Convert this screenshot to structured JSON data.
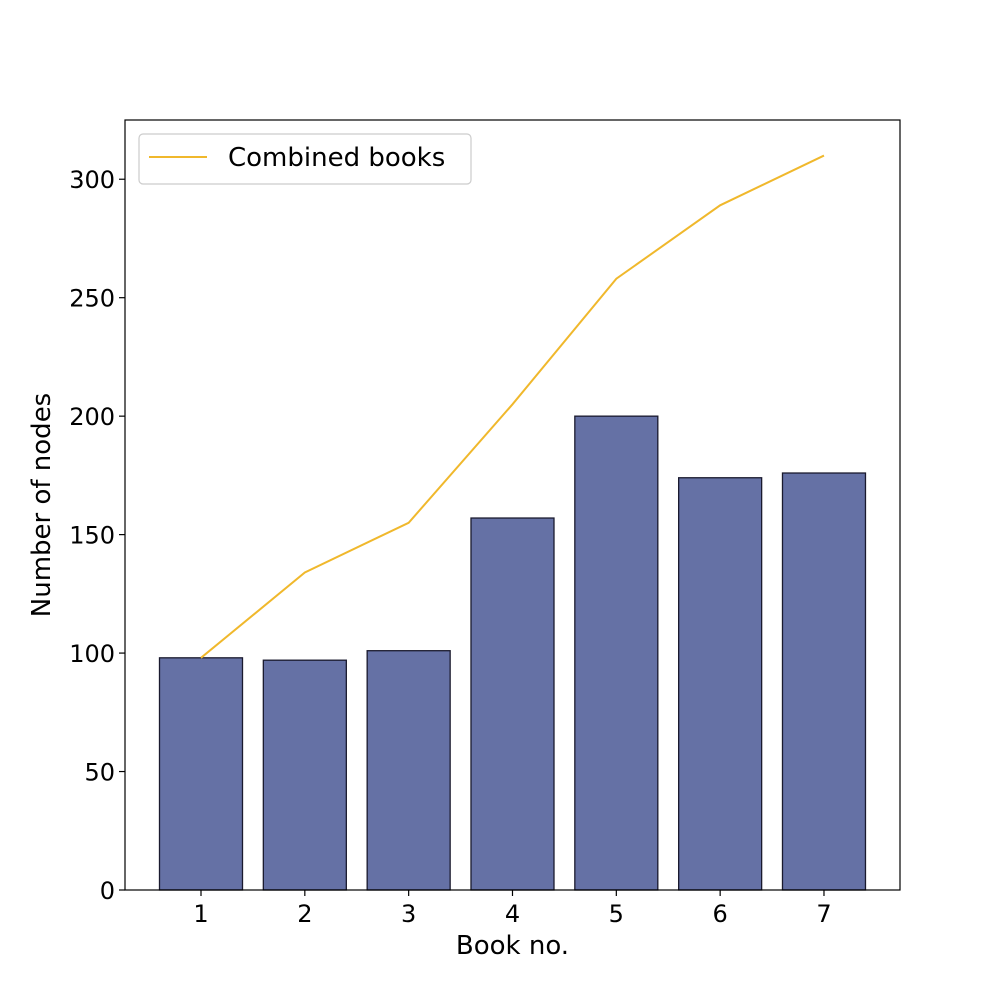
{
  "chart_data": {
    "type": "bar",
    "title": "",
    "xlabel": "Book no.",
    "ylabel": "Number of nodes",
    "categories": [
      "1",
      "2",
      "3",
      "4",
      "5",
      "6",
      "7"
    ],
    "ylim": [
      0,
      325
    ],
    "yticks": [
      0,
      50,
      100,
      150,
      200,
      250,
      300
    ],
    "grid": false,
    "legend_position": "top-left",
    "series": [
      {
        "type": "bar",
        "values": [
          98,
          97,
          101,
          157,
          200,
          174,
          176
        ],
        "color": "#6571a5",
        "edgecolor": "#1a1a2e"
      },
      {
        "type": "line",
        "name": "Combined books",
        "values": [
          98,
          134,
          155,
          205,
          258,
          289,
          310
        ],
        "color": "#f0b82c"
      }
    ]
  }
}
